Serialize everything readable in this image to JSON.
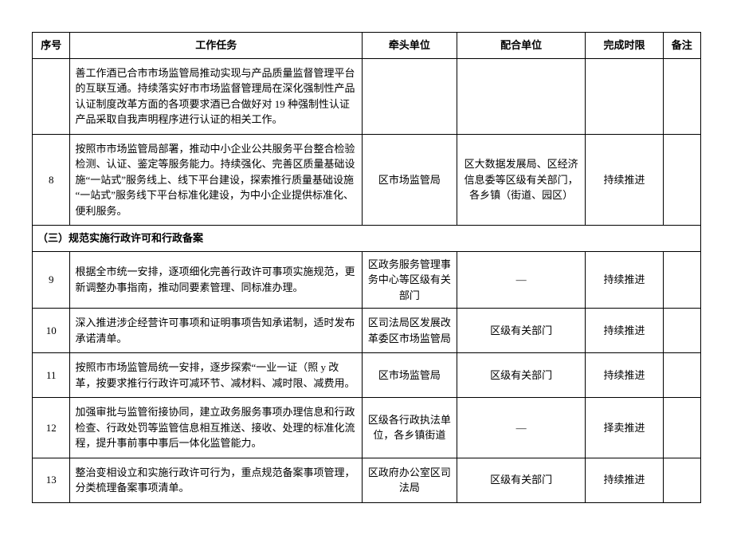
{
  "columns": [
    "序号",
    "工作任务",
    "牵头单位",
    "配合单位",
    "完成时限",
    "备注"
  ],
  "section_title": "（三）规范实施行政许可和行政备案",
  "rows_before": [
    {
      "num": "",
      "task": "善工作酒已合市市场监管局推动实现与产品质量监督管理平台的互联互通。持续落实好市市场监督管理局在深化强制性产品认证制度改革方面的各项要求酒已合做好对 19 种强制性认证产品采取自我声明程序进行认证的相关工作。",
      "lead": "",
      "coop": "",
      "time": "",
      "note": ""
    },
    {
      "num": "8",
      "task": "按照市市场监管局部署，推动中小企业公共服务平台整合检验检测、认证、鉴定等服务能力。持续强化、完善区质量基础设施“一站式”服务线上、线下平台建设，探索推行质量基础设施 “一站式”服务线下平台标准化建设，为中小企业提供标准化、便利服务。",
      "lead": "区市场监管局",
      "coop": "区大数据发展局、区经济信息委等区级有关部门，各乡镇（街道、园区）",
      "time": "持续推进",
      "note": ""
    }
  ],
  "rows_after": [
    {
      "num": "9",
      "task": "根据全市统一安排，逐项细化完善行政许可事项实施规范，更新调整办事指南，推动同要素管理、同标准办理。",
      "lead": "区政务服务管理事务中心等区级有关部门",
      "coop": "—",
      "time": "持续推进",
      "note": ""
    },
    {
      "num": "10",
      "task": "深入推进涉企经营许可事项和证明事项告知承诺制，适时发布承诺清单。",
      "lead": "区司法局区发展改革委区市场监管局",
      "coop": "区级有关部门",
      "time": "持续推进",
      "note": ""
    },
    {
      "num": "11",
      "task": "按照市市场监管局统一安排，逐步探索“一业一证（照 y 改革，按要求推行行政许可减环节、减材料、减时限、减费用。",
      "lead": "区市场监管局",
      "coop": "区级有关部门",
      "time": "持续推进",
      "note": ""
    },
    {
      "num": "12",
      "task": "加强审批与监管衔接协同，建立政务服务事项办理信息和行政检查、行政处罚等监管信息相互推送、接收、处理的标准化流程，提升事前事中事后一体化监管能力。",
      "lead": "区级各行政执法单位，各乡镇街道",
      "coop": "—",
      "time": "择卖推进",
      "note": ""
    },
    {
      "num": "13",
      "task": "整治变相设立和实施行政许可行为，重点规范备案事项管理，分类梳理备案事项清单。",
      "lead": "区政府办公室区司法局",
      "coop": "区级有关部门",
      "time": "持续推进",
      "note": ""
    }
  ]
}
